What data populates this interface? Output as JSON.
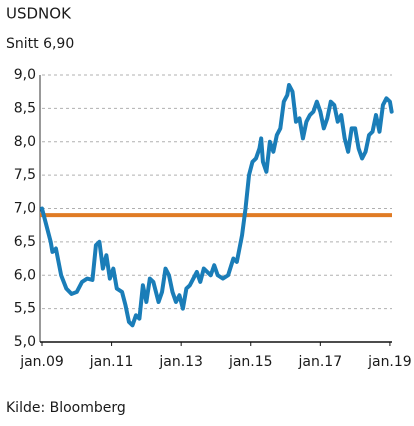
{
  "chart_data": {
    "type": "line",
    "title": "USDNOK",
    "subtitle": "Snitt 6,90",
    "source": "Kilde: Bloomberg",
    "reference_line": {
      "value": 6.9,
      "color": "#e07b24"
    },
    "xlim": [
      2009,
      2019.06
    ],
    "xticks": [
      {
        "value": 2009,
        "label": "jan.09"
      },
      {
        "value": 2011,
        "label": "jan.11"
      },
      {
        "value": 2013,
        "label": "jan.13"
      },
      {
        "value": 2015,
        "label": "jan.15"
      },
      {
        "value": 2017,
        "label": "jan.17"
      },
      {
        "value": 2019,
        "label": "jan.19"
      }
    ],
    "ylim": [
      5,
      9
    ],
    "yticks": [
      {
        "value": 5,
        "label": "5,0"
      },
      {
        "value": 5.5,
        "label": "5,5"
      },
      {
        "value": 6,
        "label": "6,0"
      },
      {
        "value": 6.5,
        "label": "6,5"
      },
      {
        "value": 7,
        "label": "7,0"
      },
      {
        "value": 7.5,
        "label": "7,5"
      },
      {
        "value": 8,
        "label": "8,0"
      },
      {
        "value": 8.5,
        "label": "8,5"
      },
      {
        "value": 9,
        "label": "9,0"
      }
    ],
    "grid": true,
    "x": [
      2009.0,
      2009.1,
      2009.25,
      2009.3,
      2009.4,
      2009.55,
      2009.7,
      2009.85,
      2010.0,
      2010.15,
      2010.3,
      2010.45,
      2010.55,
      2010.65,
      2010.75,
      2010.85,
      2010.95,
      2011.05,
      2011.15,
      2011.3,
      2011.4,
      2011.5,
      2011.6,
      2011.7,
      2011.8,
      2011.9,
      2012.0,
      2012.1,
      2012.2,
      2012.35,
      2012.45,
      2012.55,
      2012.65,
      2012.75,
      2012.85,
      2012.95,
      2013.05,
      2013.15,
      2013.25,
      2013.35,
      2013.45,
      2013.55,
      2013.65,
      2013.75,
      2013.85,
      2013.95,
      2014.05,
      2014.2,
      2014.35,
      2014.5,
      2014.6,
      2014.75,
      2014.85,
      2014.95,
      2015.05,
      2015.15,
      2015.25,
      2015.3,
      2015.35,
      2015.45,
      2015.55,
      2015.65,
      2015.75,
      2015.85,
      2015.95,
      2016.05,
      2016.1,
      2016.2,
      2016.3,
      2016.4,
      2016.5,
      2016.6,
      2016.7,
      2016.8,
      2016.9,
      2017.0,
      2017.1,
      2017.2,
      2017.3,
      2017.4,
      2017.5,
      2017.6,
      2017.7,
      2017.8,
      2017.9,
      2018.0,
      2018.1,
      2018.2,
      2018.3,
      2018.4,
      2018.5,
      2018.6,
      2018.7,
      2018.8,
      2018.9,
      2019.0,
      2019.05
    ],
    "series": [
      {
        "name": "USDNOK",
        "color": "#1a7db8",
        "values": [
          7.0,
          6.8,
          6.5,
          6.35,
          6.4,
          6.0,
          5.8,
          5.72,
          5.75,
          5.9,
          5.95,
          5.93,
          6.45,
          6.5,
          6.1,
          6.3,
          5.95,
          6.1,
          5.8,
          5.75,
          5.55,
          5.3,
          5.25,
          5.4,
          5.35,
          5.85,
          5.6,
          5.95,
          5.9,
          5.6,
          5.75,
          6.1,
          6.0,
          5.75,
          5.6,
          5.7,
          5.5,
          5.8,
          5.85,
          5.95,
          6.05,
          5.9,
          6.1,
          6.05,
          6.0,
          6.15,
          6.0,
          5.95,
          6.0,
          6.25,
          6.2,
          6.6,
          7.0,
          7.5,
          7.7,
          7.75,
          7.9,
          8.05,
          7.7,
          7.55,
          8.0,
          7.85,
          8.1,
          8.2,
          8.6,
          8.7,
          8.85,
          8.75,
          8.3,
          8.35,
          8.05,
          8.3,
          8.4,
          8.45,
          8.6,
          8.45,
          8.2,
          8.35,
          8.6,
          8.55,
          8.3,
          8.4,
          8.05,
          7.85,
          8.2,
          8.2,
          7.9,
          7.75,
          7.85,
          8.1,
          8.15,
          8.4,
          8.15,
          8.55,
          8.65,
          8.6,
          8.45
        ]
      }
    ]
  }
}
